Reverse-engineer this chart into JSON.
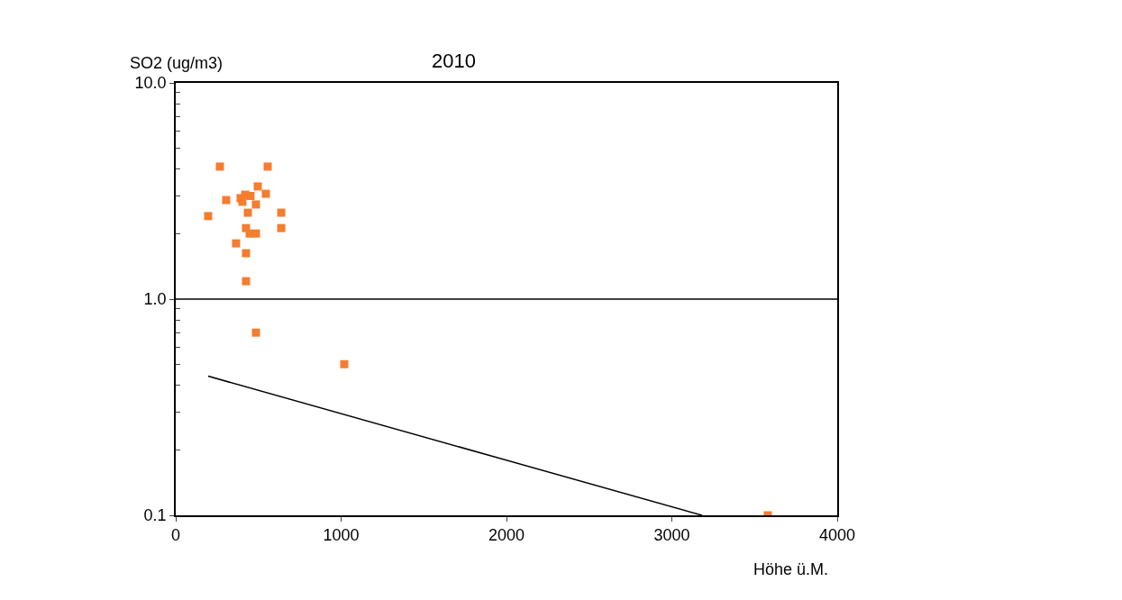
{
  "chart_data": {
    "type": "scatter",
    "title": "2010",
    "xlabel": "Höhe ü.M.",
    "ylabel": "SO2 (ug/m3)",
    "log": "y",
    "marker": "square",
    "xlim": [
      0,
      4000
    ],
    "xticks": [
      0,
      1000,
      2000,
      3000,
      4000
    ],
    "ylim": [
      0.1,
      10
    ],
    "yticks": [
      {
        "value": 0.1,
        "label": "0.1"
      },
      {
        "value": 1,
        "label": "1.0"
      },
      {
        "value": 10,
        "label": "10.0"
      }
    ],
    "ref_lines": [
      {
        "axis": "y",
        "value": 1,
        "color": "#000000"
      }
    ],
    "series": [
      {
        "color": "#f47d2f",
        "x": [
          196,
          267,
          305,
          365,
          392,
          403,
          420,
          425,
          425,
          425,
          436,
          447,
          452,
          485,
          485,
          496,
          545,
          556,
          638,
          638,
          485,
          1019,
          3580
        ],
        "values": [
          2.42,
          4.1,
          2.87,
          1.81,
          2.93,
          2.82,
          3.04,
          2.13,
          1.63,
          1.21,
          2.51,
          2.01,
          3.0,
          2.74,
          2.01,
          3.32,
          3.07,
          4.1,
          2.51,
          2.13,
          0.7,
          0.5,
          0.1
        ]
      },
      {
        "type": "line",
        "color": "#000000",
        "marker": "none",
        "x": [
          196,
          3183
        ],
        "values": [
          0.44,
          0.1
        ]
      }
    ]
  }
}
